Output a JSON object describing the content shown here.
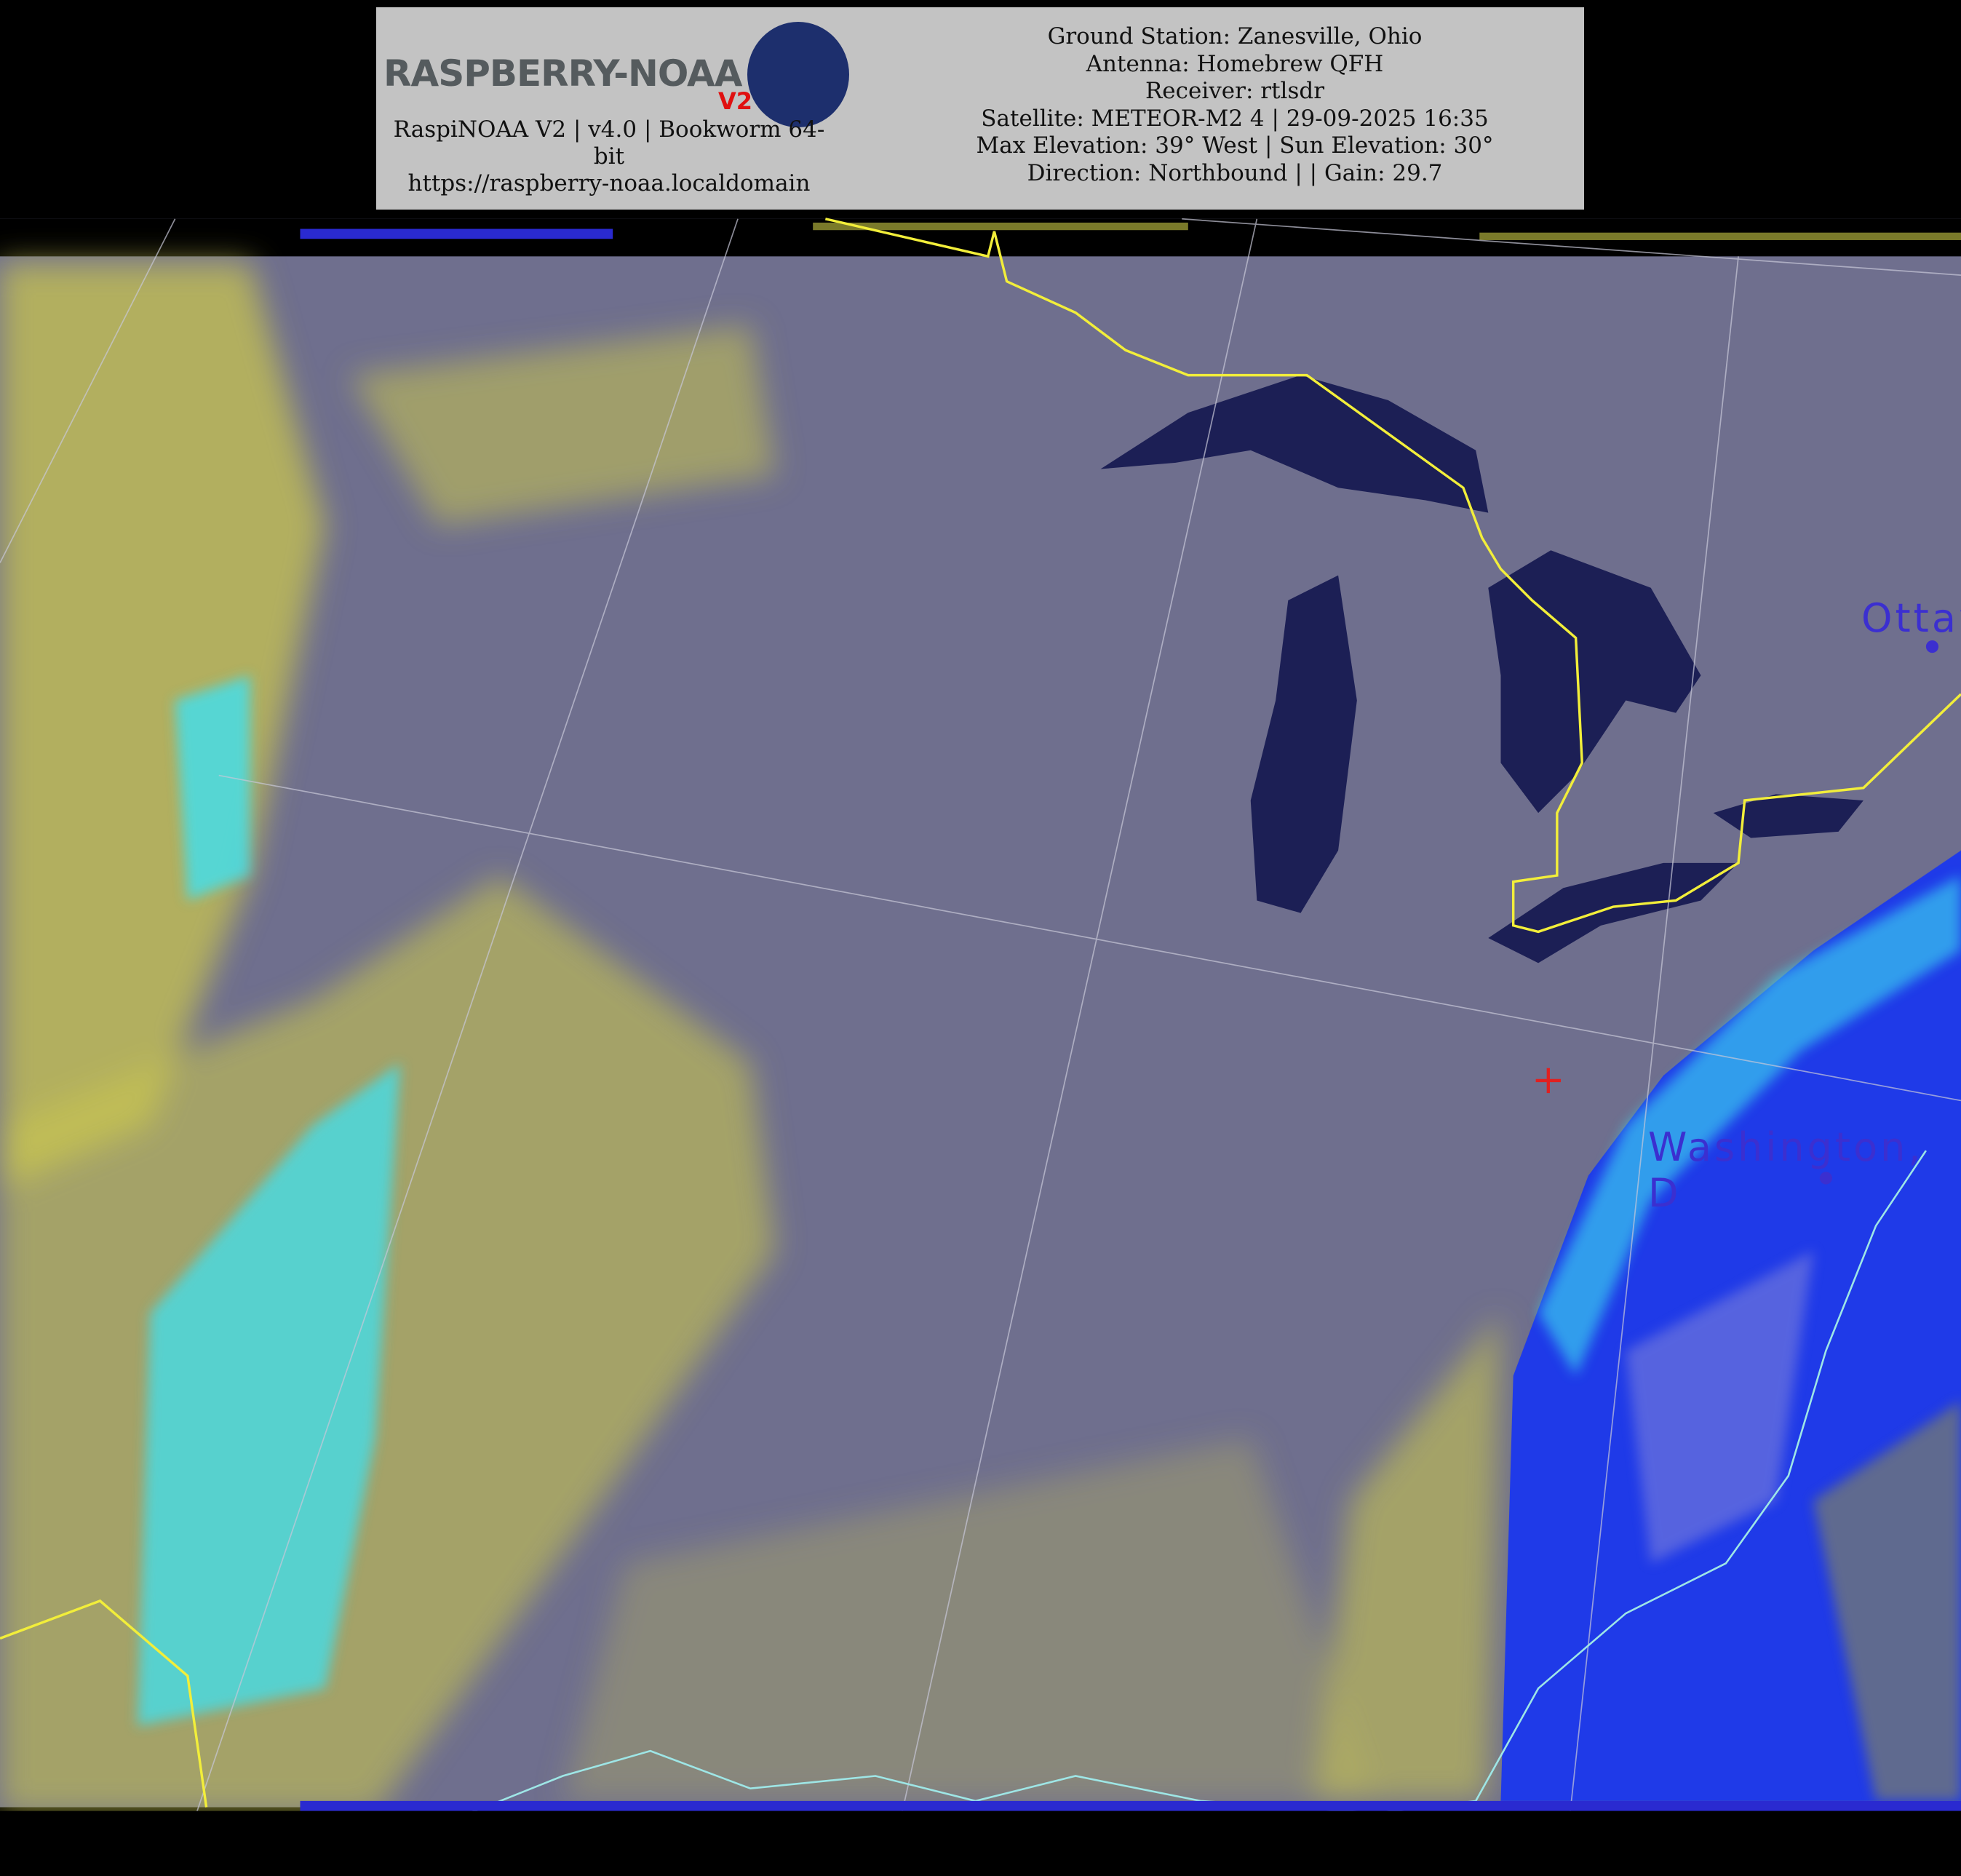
{
  "header": {
    "logo": {
      "text": "RASPBERRY-NOAA",
      "badge": "V2"
    },
    "left_lines": [
      "RaspiNOAA V2 | v4.0 | Bookworm 64-bit",
      "https://raspberry-noaa.localdomain"
    ],
    "right_lines": [
      "Ground Station: Zanesville, Ohio",
      "Antenna: Homebrew QFH",
      "Receiver: rtlsdr",
      "Satellite: METEOR-M2 4 | 29-09-2025 16:35",
      "Max Elevation: 39° West | Sun Elevation: 30°",
      "Direction: Northbound | | Gain: 29.7"
    ]
  },
  "map": {
    "city_labels": [
      "Ottaw",
      "Washington, D"
    ],
    "colors": {
      "land": "#6f6f8e",
      "water": "#1c1f55",
      "cloud": "#d6d24e",
      "cold_cloud": "#3de0f0",
      "precip": "#1f3ae8",
      "border": "#f2ee3a",
      "coast": "#9ee6e6",
      "marker": "#e02020"
    }
  }
}
